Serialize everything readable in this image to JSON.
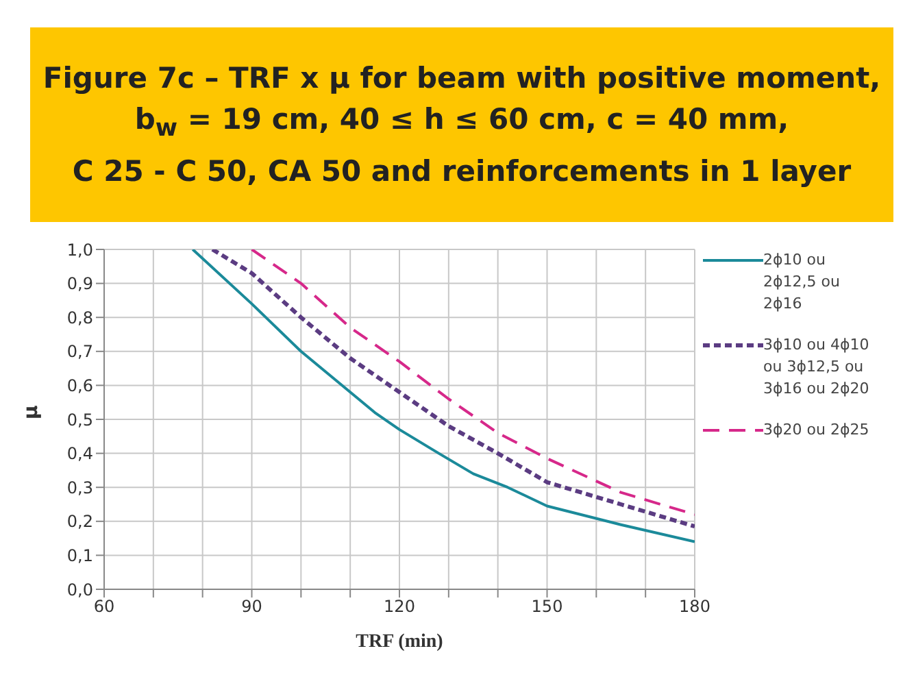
{
  "chart_data": {
    "type": "line",
    "title": "Figure 7c – TRF x μ for beam with positive moment,\nb$_{w}$ = 19 cm, 40 ≤ h ≤ 60 cm, c = 40 mm,\nC 25 - C 50, CA 50 and reinforcements in 1 layer",
    "xlabel": "TRF (min)",
    "ylabel": "μ",
    "xlim": [
      60,
      180
    ],
    "xticks": [
      60,
      {
        "value": 70,
        "label": null
      },
      {
        "value": 80,
        "label": null
      },
      90,
      {
        "value": 100,
        "label": null
      },
      {
        "value": 110,
        "label": null
      },
      120,
      {
        "value": 130,
        "label": null
      },
      {
        "value": 140,
        "label": null
      },
      150,
      {
        "value": 160,
        "label": null
      },
      {
        "value": 170,
        "label": null
      },
      180
    ],
    "ylim": [
      0,
      1
    ],
    "yticks": [
      {
        "value": 0,
        "label": "0,0"
      },
      {
        "value": 0.1,
        "label": "0,1"
      },
      {
        "value": 0.2,
        "label": "0,2"
      },
      {
        "value": 0.3,
        "label": "0,3"
      },
      {
        "value": 0.4,
        "label": "0,4"
      },
      {
        "value": 0.5,
        "label": "0,5"
      },
      {
        "value": 0.6,
        "label": "0,6"
      },
      {
        "value": 0.7,
        "label": "0,7"
      },
      {
        "value": 0.8,
        "label": "0,8"
      },
      {
        "value": 0.9,
        "label": "0,9"
      },
      {
        "value": 1,
        "label": "1,0"
      }
    ],
    "grid": true,
    "legend": "right",
    "marker": "none",
    "series": [
      {
        "name": "2ϕ10 ou 2ϕ12,5 ou 2ϕ16",
        "color": "#1b8a9a",
        "line_style": "solid",
        "x": [
          78,
          90,
          100,
          105,
          110,
          115,
          120,
          128,
          135,
          142,
          150,
          165,
          180
        ],
        "values": [
          1.0,
          0.84,
          0.7,
          0.64,
          0.58,
          0.52,
          0.47,
          0.4,
          0.34,
          0.3,
          0.245,
          0.19,
          0.14
        ]
      },
      {
        "name": "3ϕ10 ou 4ϕ10 ou 3ϕ12,5 ou 3ϕ16 ou 2ϕ20",
        "color": "#5b3c82",
        "line_style": "dotted",
        "x": [
          82,
          90,
          100,
          110,
          120,
          130,
          140,
          150,
          165,
          180
        ],
        "values": [
          1.0,
          0.93,
          0.8,
          0.68,
          0.58,
          0.48,
          0.4,
          0.315,
          0.25,
          0.185
        ]
      },
      {
        "name": "3ϕ20 ou 2ϕ25",
        "color": "#d6288a",
        "line_style": "dashed",
        "x": [
          90,
          100,
          110,
          120,
          130,
          140,
          150,
          165,
          180
        ],
        "values": [
          1.0,
          0.9,
          0.77,
          0.67,
          0.56,
          0.46,
          0.385,
          0.285,
          0.22
        ]
      }
    ]
  }
}
